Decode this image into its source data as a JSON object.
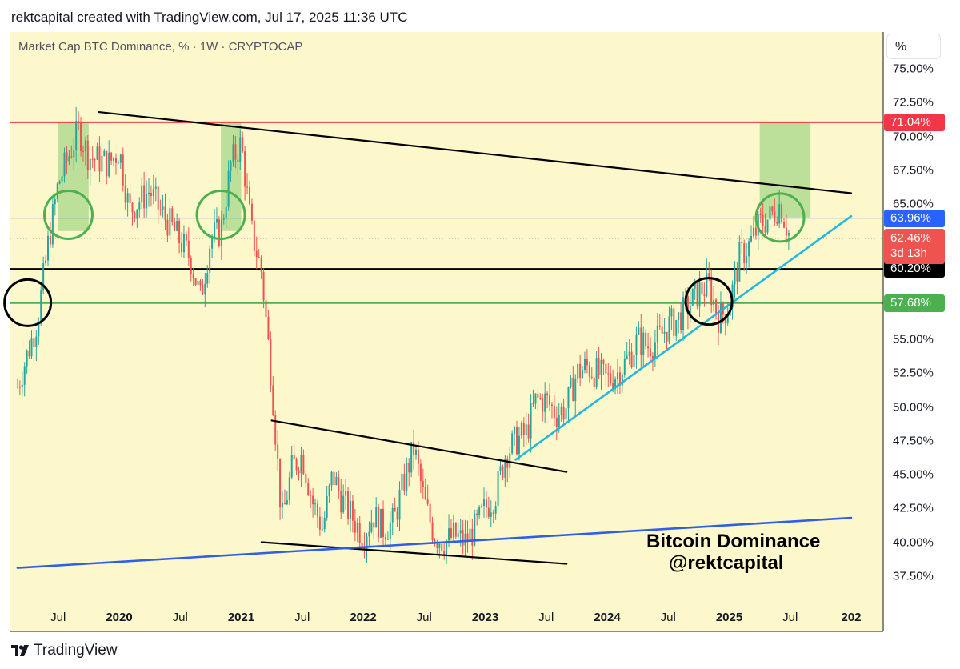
{
  "header": {
    "caption": "rektcapital created with TradingView.com, Jul 17, 2025 11:36 UTC"
  },
  "series_title": "Market Cap BTC Dominance, % · 1W · CRYPTOCAP",
  "unit_label": "%",
  "footer": {
    "brand": "TradingView"
  },
  "watermark": {
    "line1": "Bitcoin Dominance",
    "line2": "@rektcapital"
  },
  "colors": {
    "background": "#fdf8cc",
    "up": "#26a69a",
    "down": "#ef5350",
    "resistance": "#f23645",
    "support": "#4caf50",
    "blue_level": "#2962ff",
    "trendline_cyan": "#22b7e0",
    "long_blue": "#2f5fe8",
    "black": "#000000",
    "highlight": "#a5d88a"
  },
  "chart_data": {
    "type": "candlestick",
    "title": "Market Cap BTC Dominance, % · 1W · CRYPTOCAP",
    "ylabel": "%",
    "ylim": [
      36.0,
      77.0
    ],
    "y_ticks": [
      "75.00%",
      "72.50%",
      "70.00%",
      "67.50%",
      "65.00%",
      "55.00%",
      "52.50%",
      "50.00%",
      "47.50%",
      "45.00%",
      "42.50%",
      "40.00%",
      "37.50%"
    ],
    "x_ticks": [
      {
        "label": "Jul",
        "date": "2019-07",
        "major": false
      },
      {
        "label": "2020",
        "date": "2020-01",
        "major": true
      },
      {
        "label": "Jul",
        "date": "2020-07",
        "major": false
      },
      {
        "label": "2021",
        "date": "2021-01",
        "major": true
      },
      {
        "label": "Jul",
        "date": "2021-07",
        "major": false
      },
      {
        "label": "2022",
        "date": "2022-01",
        "major": true
      },
      {
        "label": "Jul",
        "date": "2022-07",
        "major": false
      },
      {
        "label": "2023",
        "date": "2023-01",
        "major": true
      },
      {
        "label": "Jul",
        "date": "2023-07",
        "major": false
      },
      {
        "label": "2024",
        "date": "2024-01",
        "major": true
      },
      {
        "label": "Jul",
        "date": "2024-07",
        "major": false
      },
      {
        "label": "2025",
        "date": "2025-01",
        "major": true
      },
      {
        "label": "Jul",
        "date": "2025-07",
        "major": false
      },
      {
        "label": "202",
        "date": "2026-01",
        "major": true
      }
    ],
    "price_levels": [
      {
        "label": "71.04%",
        "value": 71.04,
        "color": "#f23645"
      },
      {
        "label": "63.96%",
        "value": 63.96,
        "color": "#2962ff"
      },
      {
        "label": "60.20%",
        "value": 60.2,
        "color": "#000000"
      },
      {
        "label": "57.68%",
        "value": 57.68,
        "color": "#4caf50"
      }
    ],
    "current": {
      "value": 62.46,
      "label": "62.46%",
      "countdown": "3d 13h"
    },
    "trendlines": [
      {
        "from": [
          "2019-11",
          71.8
        ],
        "to": [
          "2026-01",
          65.8
        ],
        "color": "#000000"
      },
      {
        "from": [
          "2021-04",
          49.0
        ],
        "to": [
          "2023-09",
          45.2
        ],
        "color": "#000000"
      },
      {
        "from": [
          "2021-03",
          40.0
        ],
        "to": [
          "2023-09",
          38.4
        ],
        "color": "#000000"
      },
      {
        "from": [
          "2023-04",
          46.1
        ],
        "to": [
          "2026-01",
          64.1
        ],
        "color": "#22b7e0"
      },
      {
        "from": [
          "2019-03",
          38.1
        ],
        "to": [
          "2026-01",
          41.8
        ],
        "color": "#2f5fe8"
      }
    ],
    "highlight_zones": [
      {
        "from": "2019-07",
        "to": "2019-10",
        "ymin": 63.0,
        "ymax": 71.04
      },
      {
        "from": "2020-11",
        "to": "2021-01",
        "ymin": 63.0,
        "ymax": 71.04
      },
      {
        "from": "2025-04",
        "to": "2025-09",
        "ymin": 64.0,
        "ymax": 71.04
      }
    ],
    "circles": [
      {
        "x": "2019-04",
        "y": 57.7,
        "color": "#000000"
      },
      {
        "x": "2019-08",
        "y": 64.2,
        "color": "#4caf50"
      },
      {
        "x": "2020-11",
        "y": 64.2,
        "color": "#4caf50"
      },
      {
        "x": "2024-11",
        "y": 57.8,
        "color": "#000000"
      },
      {
        "x": "2025-06",
        "y": 64.0,
        "color": "#4caf50"
      }
    ],
    "weekly_close": [
      {
        "date": "2019-03",
        "close": 51.5
      },
      {
        "date": "2019-05",
        "close": 56.5
      },
      {
        "date": "2019-06",
        "close": 62.0
      },
      {
        "date": "2019-07",
        "close": 66.5
      },
      {
        "date": "2019-09",
        "close": 70.5
      },
      {
        "date": "2019-10",
        "close": 68.5
      },
      {
        "date": "2019-12",
        "close": 68.0
      },
      {
        "date": "2020-01",
        "close": 69.0
      },
      {
        "date": "2020-02",
        "close": 64.5
      },
      {
        "date": "2020-04",
        "close": 66.0
      },
      {
        "date": "2020-05",
        "close": 64.5
      },
      {
        "date": "2020-06",
        "close": 63.5
      },
      {
        "date": "2020-08",
        "close": 61.0
      },
      {
        "date": "2020-09",
        "close": 58.0
      },
      {
        "date": "2020-10",
        "close": 62.5
      },
      {
        "date": "2020-11",
        "close": 63.0
      },
      {
        "date": "2020-12",
        "close": 68.0
      },
      {
        "date": "2021-01",
        "close": 69.5
      },
      {
        "date": "2021-02",
        "close": 63.0
      },
      {
        "date": "2021-03",
        "close": 60.0
      },
      {
        "date": "2021-04",
        "close": 52.0
      },
      {
        "date": "2021-05",
        "close": 41.5
      },
      {
        "date": "2021-06",
        "close": 45.5
      },
      {
        "date": "2021-07",
        "close": 46.5
      },
      {
        "date": "2021-08",
        "close": 43.0
      },
      {
        "date": "2021-09",
        "close": 41.0
      },
      {
        "date": "2021-10",
        "close": 45.0
      },
      {
        "date": "2021-11",
        "close": 43.0
      },
      {
        "date": "2022-01",
        "close": 40.5
      },
      {
        "date": "2022-02",
        "close": 42.0
      },
      {
        "date": "2022-03",
        "close": 41.0
      },
      {
        "date": "2022-04",
        "close": 41.5
      },
      {
        "date": "2022-05",
        "close": 44.5
      },
      {
        "date": "2022-06",
        "close": 47.0
      },
      {
        "date": "2022-07",
        "close": 43.0
      },
      {
        "date": "2022-08",
        "close": 40.5
      },
      {
        "date": "2022-09",
        "close": 40.0
      },
      {
        "date": "2022-10",
        "close": 40.5
      },
      {
        "date": "2022-11",
        "close": 40.0
      },
      {
        "date": "2022-12",
        "close": 41.0
      },
      {
        "date": "2023-01",
        "close": 42.5
      },
      {
        "date": "2023-02",
        "close": 43.5
      },
      {
        "date": "2023-03",
        "close": 46.5
      },
      {
        "date": "2023-04",
        "close": 47.5
      },
      {
        "date": "2023-05",
        "close": 48.0
      },
      {
        "date": "2023-06",
        "close": 50.5
      },
      {
        "date": "2023-07",
        "close": 50.5
      },
      {
        "date": "2023-08",
        "close": 49.5
      },
      {
        "date": "2023-09",
        "close": 50.0
      },
      {
        "date": "2023-10",
        "close": 52.5
      },
      {
        "date": "2023-11",
        "close": 53.0
      },
      {
        "date": "2023-12",
        "close": 52.5
      },
      {
        "date": "2024-01",
        "close": 52.0
      },
      {
        "date": "2024-02",
        "close": 52.5
      },
      {
        "date": "2024-03",
        "close": 53.5
      },
      {
        "date": "2024-04",
        "close": 55.0
      },
      {
        "date": "2024-05",
        "close": 54.5
      },
      {
        "date": "2024-06",
        "close": 55.0
      },
      {
        "date": "2024-07",
        "close": 56.0
      },
      {
        "date": "2024-08",
        "close": 56.5
      },
      {
        "date": "2024-09",
        "close": 57.5
      },
      {
        "date": "2024-10",
        "close": 58.5
      },
      {
        "date": "2024-11",
        "close": 59.0
      },
      {
        "date": "2024-12",
        "close": 56.5
      },
      {
        "date": "2025-01",
        "close": 57.5
      },
      {
        "date": "2025-02",
        "close": 61.0
      },
      {
        "date": "2025-03",
        "close": 62.0
      },
      {
        "date": "2025-04",
        "close": 63.5
      },
      {
        "date": "2025-05",
        "close": 64.0
      },
      {
        "date": "2025-06",
        "close": 65.0
      },
      {
        "date": "2025-07",
        "close": 62.46
      }
    ]
  }
}
